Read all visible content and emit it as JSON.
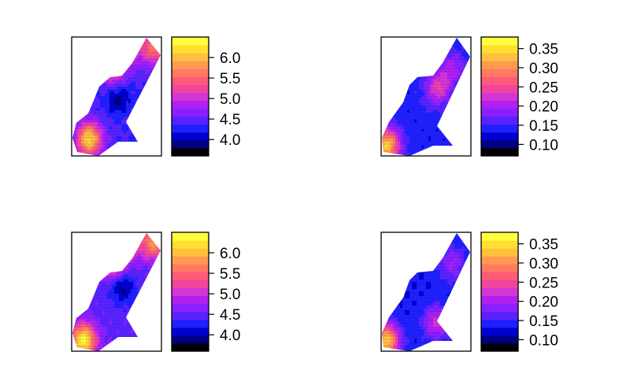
{
  "chart_data": [
    {
      "type": "heatmap",
      "title": "",
      "xlabel": "",
      "ylabel": "",
      "colorbar": {
        "range": [
          3.6,
          6.5
        ],
        "ticks": [
          "6.0",
          "5.5",
          "5.0",
          "4.5",
          "4.0"
        ],
        "tick_values": [
          6.0,
          5.5,
          5.0,
          4.5,
          4.0
        ]
      },
      "field": {
        "base": 4.4,
        "bulges": [
          [
            0.18,
            0.85,
            1.8
          ],
          [
            0.45,
            0.28,
            0.9
          ],
          [
            0.62,
            0.1,
            0.8
          ],
          [
            0.9,
            0.08,
            1.2
          ],
          [
            0.5,
            0.5,
            -0.5
          ]
        ]
      }
    },
    {
      "type": "heatmap",
      "title": "",
      "xlabel": "",
      "ylabel": "",
      "colorbar": {
        "range": [
          0.07,
          0.38
        ],
        "ticks": [
          "0.35",
          "0.30",
          "0.25",
          "0.20",
          "0.15",
          "0.10"
        ],
        "tick_values": [
          0.35,
          0.3,
          0.25,
          0.2,
          0.15,
          0.1
        ]
      },
      "field": {
        "base": 0.14,
        "bulges": [
          [
            0.05,
            0.9,
            0.2
          ],
          [
            0.62,
            0.42,
            0.1
          ],
          [
            0.78,
            0.25,
            0.06
          ]
        ]
      }
    },
    {
      "type": "heatmap",
      "title": "",
      "xlabel": "",
      "ylabel": "",
      "colorbar": {
        "range": [
          3.6,
          6.5
        ],
        "ticks": [
          "6.0",
          "5.5",
          "5.0",
          "4.5",
          "4.0"
        ],
        "tick_values": [
          6.0,
          5.5,
          5.0,
          4.5,
          4.0
        ]
      },
      "field": {
        "base": 4.5,
        "bulges": [
          [
            0.12,
            0.9,
            1.9
          ],
          [
            0.45,
            0.25,
            1.0
          ],
          [
            0.6,
            0.1,
            0.9
          ],
          [
            0.9,
            0.08,
            1.3
          ],
          [
            0.55,
            0.45,
            -0.6
          ]
        ]
      }
    },
    {
      "type": "heatmap",
      "title": "",
      "xlabel": "",
      "ylabel": "",
      "colorbar": {
        "range": [
          0.07,
          0.38
        ],
        "ticks": [
          "0.35",
          "0.30",
          "0.25",
          "0.20",
          "0.15",
          "0.10"
        ],
        "tick_values": [
          0.35,
          0.3,
          0.25,
          0.2,
          0.15,
          0.1
        ]
      },
      "field": {
        "base": 0.135,
        "bulges": [
          [
            0.05,
            0.9,
            0.2
          ],
          [
            0.6,
            0.75,
            0.09
          ],
          [
            0.78,
            0.25,
            0.06
          ]
        ]
      }
    }
  ],
  "colors": {
    "palette": [
      "#000000",
      "#000080",
      "#0000d0",
      "#2020ff",
      "#5a22ff",
      "#8a20ff",
      "#b020f0",
      "#d535d5",
      "#f0459e",
      "#ff5a7a",
      "#ff7a60",
      "#ff9a50",
      "#ffc040",
      "#ffe030",
      "#ffff40"
    ],
    "frame": "#000000",
    "background": "#ffffff"
  }
}
